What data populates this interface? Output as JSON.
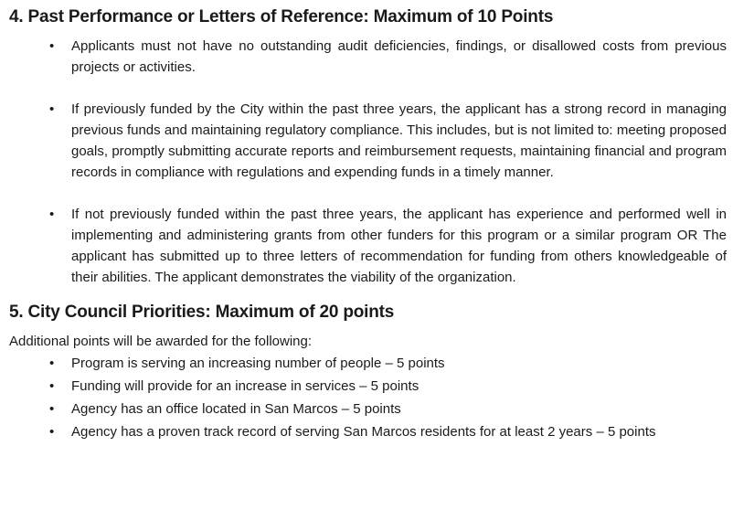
{
  "page": {
    "background_color": "#ffffff",
    "text_color": "#1a1a1a",
    "bullet_glyph": "•"
  },
  "document": {
    "sections": [
      {
        "heading": "4. Past Performance or Letters of Reference: Maximum of 10 Points",
        "bullets": [
          "Applicants must not have no outstanding audit deficiencies, findings, or disallowed costs from previous projects or activities.",
          "If previously funded by the City within the past three years, the applicant has a strong record in managing previous funds and maintaining regulatory compliance. This includes, but is not limited to: meeting proposed goals, promptly submitting accurate reports and reimbursement requests, maintaining financial and program records in compliance with regulations and expending funds in a timely manner.",
          "If not previously funded within the past three years, the applicant has experience and performed well in implementing and administering grants from other funders for this program or a similar program OR The applicant has submitted up to three letters of recommendation for funding from others knowledgeable of their abilities.  The applicant demonstrates the viability of the organization."
        ]
      },
      {
        "heading": "5. City Council Priorities: Maximum of 20 points",
        "intro": "Additional points will be awarded for the following:",
        "bullets": [
          "Program is serving an increasing number of people – 5 points",
          "Funding will provide for an increase in services – 5 points",
          "Agency has an office located in San Marcos – 5 points",
          "Agency has a proven track record of serving San Marcos residents for at least 2 years – 5 points"
        ]
      }
    ]
  }
}
